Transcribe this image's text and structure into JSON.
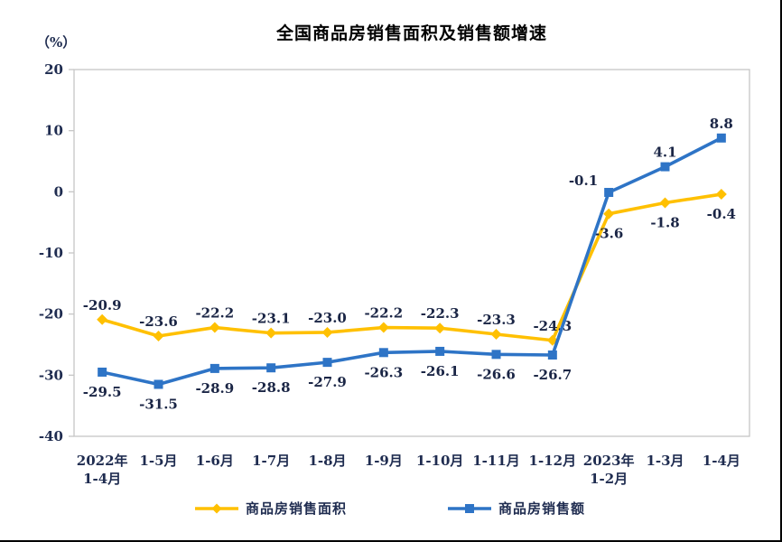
{
  "frame": {
    "background": "#FFFFFF",
    "edge_border_color": "#000000"
  },
  "chart_data": {
    "type": "line",
    "title": "全国商品房销售面积及销售额增速",
    "y_unit_label": "（%）",
    "categories": [
      "2022年\n1-4月",
      "1-5月",
      "1-6月",
      "1-7月",
      "1-8月",
      "1-9月",
      "1-10月",
      "1-11月",
      "1-12月",
      "2023年\n1-2月",
      "1-3月",
      "1-4月"
    ],
    "ylim": [
      -40,
      20
    ],
    "y_ticks": [
      20,
      10,
      0,
      -10,
      -20,
      -30,
      -40
    ],
    "grid": false,
    "legend_position": "bottom",
    "axis_color": "#C6C6C6",
    "text_color": "#1F2C50",
    "title_color": "#000000",
    "series": [
      {
        "name": "商品房销售面积",
        "color": "#FFC000",
        "marker": "diamond",
        "values": [
          -20.9,
          -23.6,
          -22.2,
          -23.1,
          -23.0,
          -22.2,
          -22.3,
          -23.3,
          -24.3,
          -3.6,
          -1.8,
          -0.4
        ],
        "label_sides": [
          "above",
          "above",
          "above",
          "above",
          "above",
          "above",
          "above",
          "above",
          "above",
          "below",
          "below",
          "below"
        ]
      },
      {
        "name": "商品房销售额",
        "color": "#2E74C6",
        "marker": "square",
        "values": [
          -29.5,
          -31.5,
          -28.9,
          -28.8,
          -27.9,
          -26.3,
          -26.1,
          -26.6,
          -26.7,
          -0.1,
          4.1,
          8.8
        ],
        "label_sides": [
          "below",
          "below",
          "below",
          "below",
          "below",
          "below",
          "below",
          "below",
          "below",
          "left",
          "above",
          "above"
        ]
      }
    ]
  }
}
